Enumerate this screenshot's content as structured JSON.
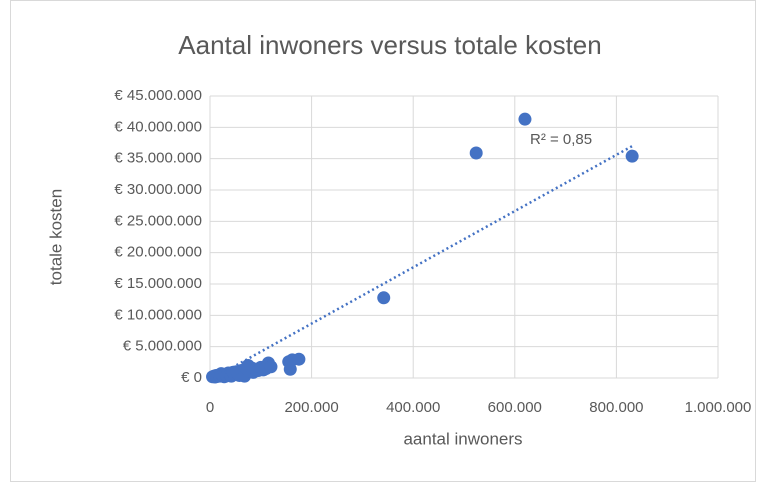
{
  "chart_data": {
    "type": "scatter",
    "title": "Aantal inwoners versus totale kosten",
    "x_label": "aantal inwoners",
    "y_label": "totale kosten",
    "annotation": "R² = 0,85",
    "color": "#4472c4",
    "grid": true,
    "xlim": [
      0,
      1000000
    ],
    "ylim": [
      0,
      45000000
    ],
    "xticks": [
      0,
      {
        "value": 200000,
        "label": "200.000"
      },
      {
        "value": 400000,
        "label": "400.000"
      },
      {
        "value": 600000,
        "label": "600.000"
      },
      {
        "value": 800000,
        "label": "800.000"
      },
      {
        "value": 1000000,
        "label": "1.000.000"
      }
    ],
    "yticks": [
      {
        "value": 0,
        "label": "€ 0"
      },
      {
        "value": 5000000,
        "label": "€ 5.000.000"
      },
      {
        "value": 10000000,
        "label": "€ 10.000.000"
      },
      {
        "value": 15000000,
        "label": "€ 15.000.000"
      },
      {
        "value": 20000000,
        "label": "€ 20.000.000"
      },
      {
        "value": 25000000,
        "label": "€ 25.000.000"
      },
      {
        "value": 30000000,
        "label": "€ 30.000.000"
      },
      {
        "value": 35000000,
        "label": "€ 35.000.000"
      },
      {
        "value": 40000000,
        "label": "€ 40.000.000"
      },
      {
        "value": 45000000,
        "label": "€ 45.000.000"
      }
    ],
    "x": [
      5000,
      8000,
      10000,
      12000,
      15000,
      18000,
      20000,
      22000,
      25000,
      28000,
      30000,
      33000,
      36000,
      40000,
      42000,
      45000,
      48000,
      52000,
      55000,
      58000,
      62000,
      65000,
      68000,
      72000,
      75000,
      78000,
      82000,
      85000,
      90000,
      95000,
      100000,
      105000,
      110000,
      115000,
      120000,
      155000,
      158000,
      162000,
      175000,
      342000,
      524000,
      620000,
      831000
    ],
    "values": [
      200000,
      300000,
      150000,
      400000,
      250000,
      500000,
      300000,
      700000,
      400000,
      200000,
      600000,
      350000,
      800000,
      500000,
      300000,
      900000,
      600000,
      1000000,
      700000,
      400000,
      1200000,
      800000,
      300000,
      1500000,
      2000000,
      1100000,
      1600000,
      900000,
      1400000,
      1200000,
      1700000,
      1300000,
      1500000,
      2400000,
      1800000,
      2600000,
      1400000,
      2900000,
      3000000,
      12800000,
      35900000,
      41300000,
      35400000
    ],
    "trendline": {
      "x": [
        35000,
        831000
      ],
      "y": [
        1280000,
        37000000
      ]
    }
  }
}
